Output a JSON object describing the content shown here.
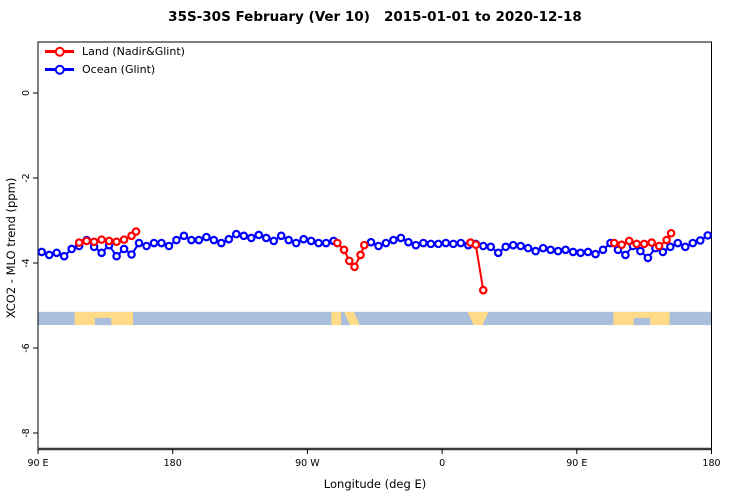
{
  "title": "35S-30S February (Ver 10)   2015-01-01 to 2020-12-18",
  "axes": {
    "x_label": "Longitude (deg E)",
    "y_label": "XCO2 - MLO trend (ppm)",
    "x_ticks": [
      {
        "lon": 90,
        "label": "90 E"
      },
      {
        "lon": 180,
        "label": "180"
      },
      {
        "lon": 270,
        "label": "90 W"
      },
      {
        "lon": 360,
        "label": "0"
      },
      {
        "lon": 450,
        "label": "90 E"
      },
      {
        "lon": 540,
        "label": "180"
      }
    ],
    "y_ticks": [
      {
        "v": 0,
        "label": "0"
      },
      {
        "v": -2,
        "label": "-2"
      },
      {
        "v": -4,
        "label": "-4"
      },
      {
        "v": -6,
        "label": "-6"
      },
      {
        "v": -8,
        "label": "-8"
      }
    ]
  },
  "legend": [
    {
      "label": "Land (Nadir&Glint)",
      "color": "#ff0000"
    },
    {
      "label": "Ocean (Glint)",
      "color": "#0000ff"
    }
  ],
  "colors": {
    "land_series": "#ff0000",
    "ocean_series": "#0000ff",
    "strip_water": "#a9bfdc",
    "strip_land": "#ffdb87",
    "axis": "#000000",
    "baseline": "#3a3a3a",
    "background": "#ffffff"
  },
  "chart_data": {
    "type": "line",
    "title": "35S-30S February (Ver 10)   2015-01-01 to 2020-12-18",
    "xlabel": "Longitude (deg E)",
    "ylabel": "XCO2 - MLO trend (ppm)",
    "x_range": [
      90,
      540
    ],
    "y_range_displayed": [
      -8.4,
      1.2
    ],
    "grid": false,
    "legend_position": "top-left",
    "series": [
      {
        "name": "Land (Nadir&Glint)",
        "color": "#ff0000",
        "marker": "open-circle",
        "segments": [
          [
            [
              117.5,
              -3.52
            ],
            [
              122.5,
              -3.48
            ],
            [
              127.5,
              -3.5
            ],
            [
              132.5,
              -3.45
            ],
            [
              137.5,
              -3.48
            ],
            [
              142.5,
              -3.5
            ],
            [
              147.5,
              -3.45
            ],
            [
              152.5,
              -3.36
            ],
            [
              155.5,
              -3.26
            ]
          ],
          [
            [
              290,
              -3.53
            ],
            [
              294.5,
              -3.69
            ],
            [
              298,
              -3.95
            ],
            [
              301.5,
              -4.09
            ],
            [
              305.5,
              -3.81
            ],
            [
              308,
              -3.58
            ]
          ],
          [
            [
              379,
              -3.52
            ],
            [
              382.5,
              -3.57
            ],
            [
              387.5,
              -4.64
            ]
          ],
          [
            [
              475,
              -3.53
            ],
            [
              480,
              -3.57
            ],
            [
              485,
              -3.48
            ],
            [
              490,
              -3.55
            ],
            [
              495,
              -3.55
            ],
            [
              500,
              -3.52
            ],
            [
              505,
              -3.6
            ],
            [
              510,
              -3.46
            ],
            [
              513,
              -3.3
            ]
          ]
        ]
      },
      {
        "name": "Ocean (Glint)",
        "color": "#0000ff",
        "marker": "open-circle",
        "segments": [
          [
            [
              92.5,
              -3.74
            ],
            [
              97.5,
              -3.81
            ],
            [
              102.5,
              -3.76
            ],
            [
              107.5,
              -3.84
            ],
            [
              112.5,
              -3.67
            ],
            [
              117.5,
              -3.6
            ],
            [
              122.5,
              -3.46
            ],
            [
              127.5,
              -3.62
            ],
            [
              132.5,
              -3.76
            ],
            [
              137.5,
              -3.58
            ],
            [
              142.5,
              -3.84
            ],
            [
              147.5,
              -3.67
            ],
            [
              152.5,
              -3.8
            ],
            [
              157.5,
              -3.53
            ],
            [
              162.5,
              -3.6
            ],
            [
              167.5,
              -3.53
            ],
            [
              172.5,
              -3.53
            ],
            [
              177.5,
              -3.6
            ],
            [
              182.5,
              -3.46
            ],
            [
              187.5,
              -3.36
            ],
            [
              192.5,
              -3.46
            ],
            [
              197.5,
              -3.46
            ],
            [
              202.5,
              -3.39
            ],
            [
              207.5,
              -3.46
            ],
            [
              212.5,
              -3.53
            ],
            [
              217.5,
              -3.44
            ],
            [
              222.5,
              -3.32
            ],
            [
              227.5,
              -3.36
            ],
            [
              232.5,
              -3.41
            ],
            [
              237.5,
              -3.34
            ],
            [
              242.5,
              -3.41
            ],
            [
              247.5,
              -3.48
            ],
            [
              252.5,
              -3.36
            ],
            [
              257.5,
              -3.46
            ],
            [
              262.5,
              -3.53
            ],
            [
              267.5,
              -3.44
            ],
            [
              272.5,
              -3.48
            ],
            [
              277.5,
              -3.53
            ],
            [
              282.5,
              -3.53
            ],
            [
              287.5,
              -3.48
            ]
          ],
          [
            [
              312.5,
              -3.51
            ],
            [
              317.5,
              -3.6
            ],
            [
              322.5,
              -3.53
            ],
            [
              327.5,
              -3.46
            ],
            [
              332.5,
              -3.41
            ],
            [
              337.5,
              -3.51
            ],
            [
              342.5,
              -3.58
            ],
            [
              347.5,
              -3.53
            ],
            [
              352.5,
              -3.55
            ],
            [
              357.5,
              -3.55
            ],
            [
              362.5,
              -3.53
            ],
            [
              367.5,
              -3.55
            ],
            [
              372.5,
              -3.53
            ],
            [
              377.5,
              -3.58
            ],
            [
              382.5,
              -3.55
            ],
            [
              387.5,
              -3.6
            ],
            [
              392.5,
              -3.62
            ],
            [
              397.5,
              -3.76
            ],
            [
              402.5,
              -3.62
            ],
            [
              407.5,
              -3.58
            ],
            [
              412.5,
              -3.6
            ],
            [
              417.5,
              -3.65
            ],
            [
              422.5,
              -3.72
            ],
            [
              427.5,
              -3.65
            ],
            [
              432.5,
              -3.69
            ],
            [
              437.5,
              -3.72
            ],
            [
              442.5,
              -3.69
            ],
            [
              447.5,
              -3.74
            ],
            [
              452.5,
              -3.76
            ],
            [
              457.5,
              -3.74
            ],
            [
              462.5,
              -3.79
            ],
            [
              467.5,
              -3.69
            ],
            [
              472.5,
              -3.53
            ],
            [
              477.5,
              -3.69
            ],
            [
              482.5,
              -3.81
            ],
            [
              487.5,
              -3.6
            ],
            [
              492.5,
              -3.72
            ],
            [
              497.5,
              -3.88
            ],
            [
              502.5,
              -3.65
            ],
            [
              507.5,
              -3.74
            ],
            [
              512.5,
              -3.62
            ],
            [
              517.5,
              -3.53
            ],
            [
              522.5,
              -3.62
            ],
            [
              527.5,
              -3.53
            ],
            [
              532.5,
              -3.47
            ],
            [
              537.5,
              -3.35
            ]
          ]
        ]
      }
    ],
    "map_strip": {
      "description": "land/water map band for 35S-30S latitude slice",
      "water_color": "#a9bfdc",
      "land_color": "#ffdb87",
      "y_range": [
        -5.15,
        -5.46
      ],
      "water_extent": [
        90,
        540
      ],
      "land_patches": [
        {
          "from": 114.5,
          "to": 153.5
        },
        {
          "from": 286,
          "to": 292.5
        },
        {
          "poly": [
            [
              294.5,
              0
            ],
            [
              301,
              0
            ],
            [
              305,
              1
            ],
            [
              298.5,
              1
            ]
          ]
        },
        {
          "poly": [
            [
              377,
              0
            ],
            [
              391,
              0
            ],
            [
              387,
              1
            ],
            [
              381,
              1
            ]
          ]
        },
        {
          "from": 474.5,
          "to": 512
        }
      ],
      "water_notches": [
        {
          "from": 128,
          "to": 139,
          "frac": 0.54
        },
        {
          "from": 488,
          "to": 499,
          "frac": 0.54
        }
      ]
    }
  }
}
